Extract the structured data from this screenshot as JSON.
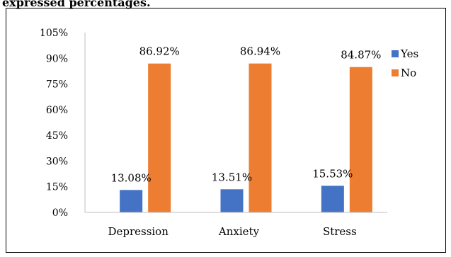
{
  "caption": "expressed percentages.",
  "chart_data": {
    "type": "bar",
    "categories": [
      "Depression",
      "Anxiety",
      "Stress"
    ],
    "series": [
      {
        "name": "Yes",
        "color": "#4472C4",
        "values": [
          13.08,
          13.51,
          15.53
        ],
        "labels": [
          "13.08%",
          "13.51%",
          "15.53%"
        ]
      },
      {
        "name": "No",
        "color": "#ED7D31",
        "values": [
          86.92,
          86.94,
          84.87
        ],
        "labels": [
          "86.92%",
          "86.94%",
          "84.87%"
        ]
      }
    ],
    "ylim": [
      0,
      105
    ],
    "yticks": [
      0,
      15,
      30,
      45,
      60,
      75,
      90,
      105
    ],
    "ytick_labels": [
      "0%",
      "15%",
      "30%",
      "45%",
      "60%",
      "75%",
      "90%",
      "105%"
    ],
    "title": "",
    "xlabel": "",
    "ylabel": "",
    "grid": false,
    "legend_position": "right"
  }
}
